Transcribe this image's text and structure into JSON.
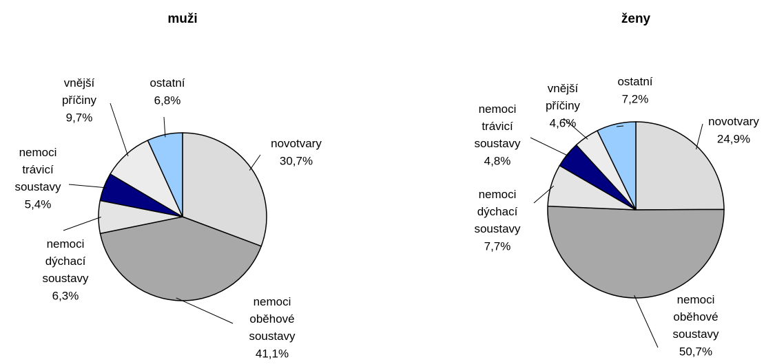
{
  "chart_data": [
    {
      "type": "pie",
      "title": "muži",
      "categories": [
        "novotvary",
        "nemoci oběhové soustavy",
        "nemoci dýchací soustavy",
        "nemoci trávicí soustavy",
        "vnější příčiny",
        "ostatní"
      ],
      "values": [
        30.7,
        41.1,
        6.3,
        5.4,
        9.7,
        6.8
      ],
      "value_labels": [
        "30,7%",
        "41,1%",
        "6,3%",
        "5,4%",
        "9,7%",
        "6,8%"
      ],
      "colors": [
        "#dcdcdc",
        "#a8a8a8",
        "#e4e4e4",
        "#000080",
        "#ececec",
        "#99ccff"
      ]
    },
    {
      "type": "pie",
      "title": "ženy",
      "categories": [
        "novotvary",
        "nemoci oběhové soustavy",
        "nemoci dýchací soustavy",
        "nemoci trávicí soustavy",
        "vnější příčiny",
        "ostatní"
      ],
      "values": [
        24.9,
        50.7,
        7.7,
        4.8,
        4.6,
        7.2
      ],
      "value_labels": [
        "24,9%",
        "50,7%",
        "7,7%",
        "4,8%",
        "4,6%",
        "7,2%"
      ],
      "colors": [
        "#dcdcdc",
        "#a8a8a8",
        "#e4e4e4",
        "#000080",
        "#ececec",
        "#99ccff"
      ]
    }
  ]
}
